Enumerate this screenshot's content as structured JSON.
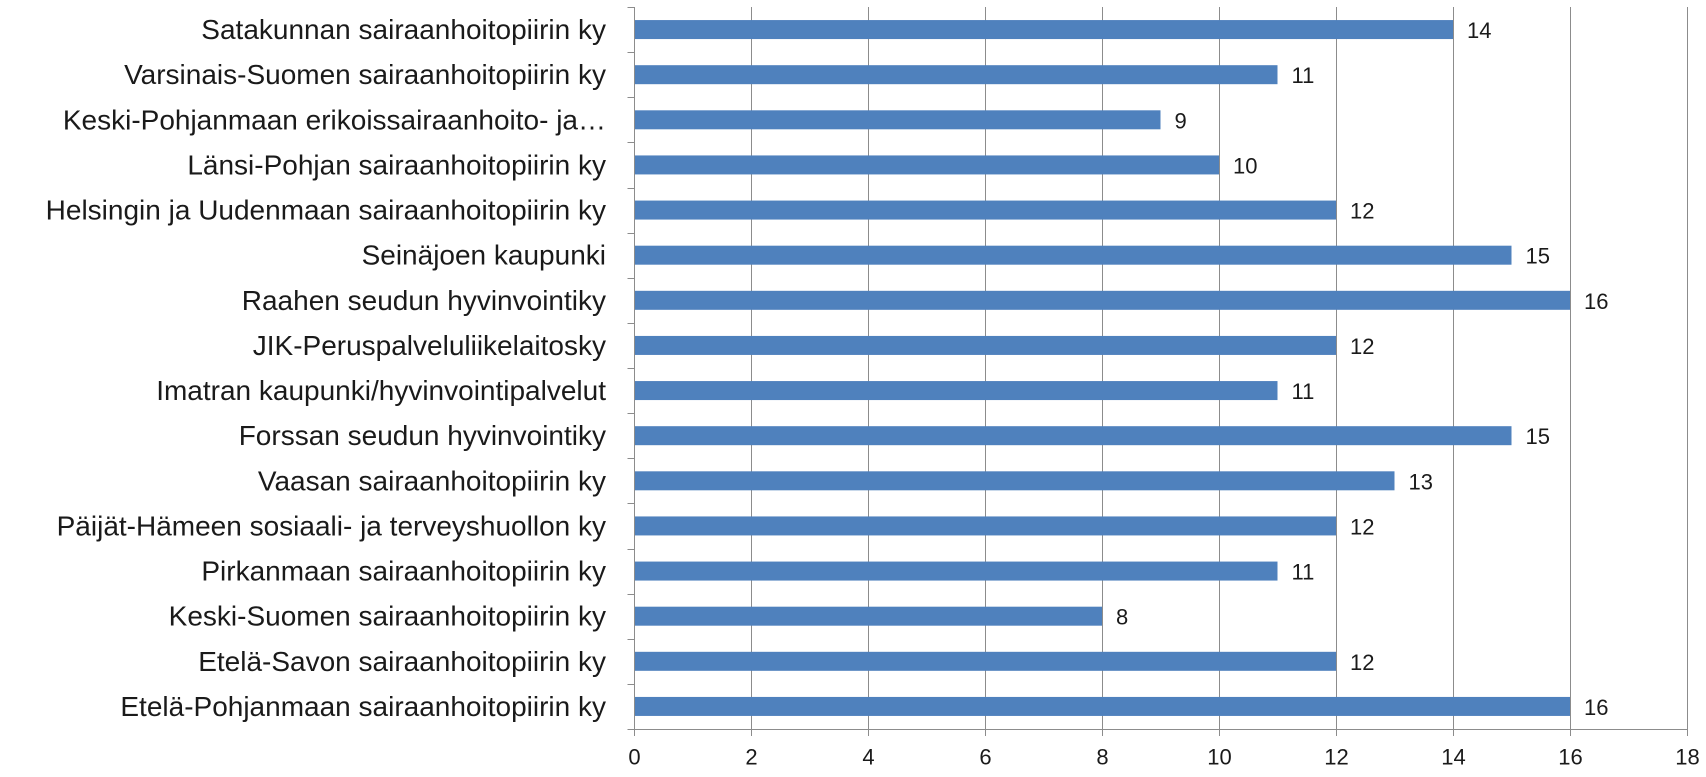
{
  "chart_data": {
    "type": "bar",
    "orientation": "horizontal",
    "title": "",
    "xlabel": "",
    "ylabel": "",
    "xlim": [
      0,
      18
    ],
    "xticks": [
      0,
      2,
      4,
      6,
      8,
      10,
      12,
      14,
      16,
      18
    ],
    "grid": "vertical",
    "legend": "none",
    "categories": [
      "Satakunnan sairaanhoitopiirin ky",
      "Varsinais-Suomen sairaanhoitopiirin ky",
      "Keski-Pohjanmaan erikoissairaanhoito- ja…",
      "Länsi-Pohjan sairaanhoitopiirin ky",
      "Helsingin ja Uudenmaan sairaanhoitopiirin ky",
      "Seinäjoen kaupunki",
      "Raahen seudun hyvinvointiky",
      "JIK-Peruspalveluliikelaitosky",
      "Imatran kaupunki/hyvinvointipalvelut",
      "Forssan seudun hyvinvointiky",
      "Vaasan sairaanhoitopiirin ky",
      "Päijät-Hämeen sosiaali- ja terveyshuollon ky",
      "Pirkanmaan sairaanhoitopiirin ky",
      "Keski-Suomen sairaanhoitopiirin ky",
      "Etelä-Savon sairaanhoitopiirin ky",
      "Etelä-Pohjanmaan sairaanhoitopiirin ky"
    ],
    "values": [
      14,
      11,
      9,
      10,
      12,
      15,
      16,
      12,
      11,
      15,
      13,
      12,
      11,
      8,
      12,
      16
    ],
    "bar_color": "#4F81BD",
    "grid_color": "#8c8c8c",
    "axis_color": "#8c8c8c"
  }
}
